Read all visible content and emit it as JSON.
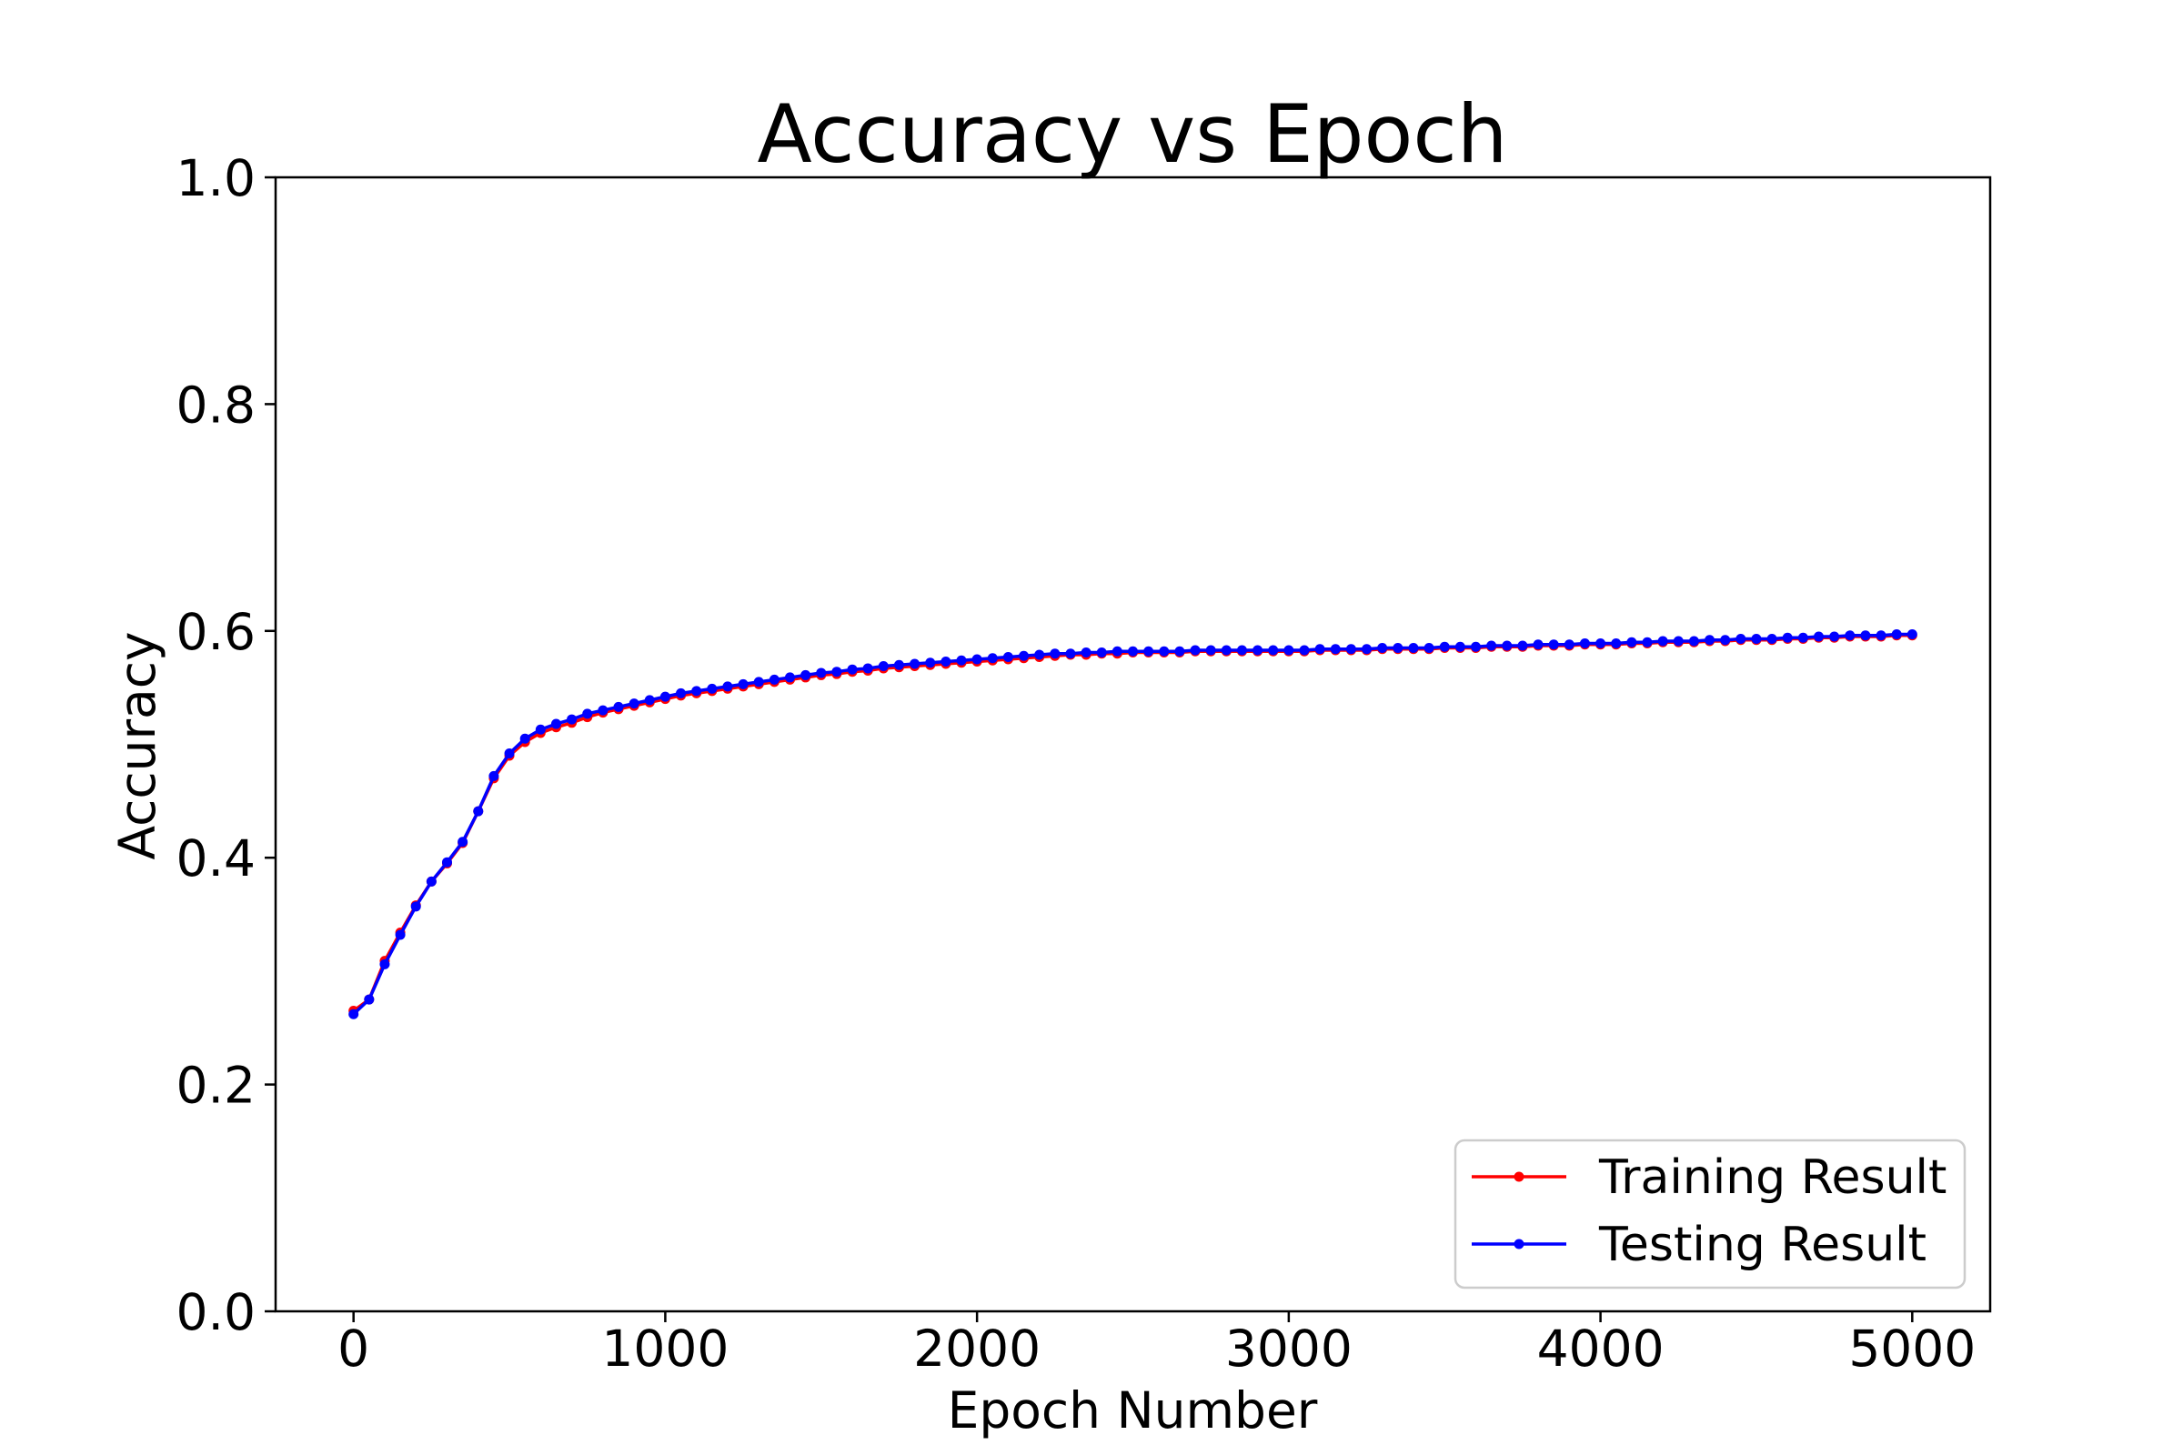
{
  "chart_data": {
    "type": "line",
    "title": "Accuracy vs Epoch",
    "xlabel": "Epoch Number",
    "ylabel": "Accuracy",
    "xlim": [
      -250,
      5250
    ],
    "ylim": [
      0.0,
      1.0
    ],
    "xticks": [
      0,
      1000,
      2000,
      3000,
      4000,
      5000
    ],
    "xtick_labels": [
      "0",
      "1000",
      "2000",
      "3000",
      "4000",
      "5000"
    ],
    "yticks": [
      0.0,
      0.2,
      0.4,
      0.6,
      0.8,
      1.0
    ],
    "ytick_labels": [
      "0.0",
      "0.2",
      "0.4",
      "0.6",
      "0.8",
      "1.0"
    ],
    "grid": false,
    "legend_position": "lower-right",
    "x": [
      0,
      50,
      100,
      150,
      200,
      250,
      300,
      350,
      400,
      450,
      500,
      550,
      600,
      650,
      700,
      750,
      800,
      850,
      900,
      950,
      1000,
      1050,
      1100,
      1150,
      1200,
      1250,
      1300,
      1350,
      1400,
      1450,
      1500,
      1550,
      1600,
      1650,
      1700,
      1750,
      1800,
      1850,
      1900,
      1950,
      2000,
      2050,
      2100,
      2150,
      2200,
      2250,
      2300,
      2350,
      2400,
      2450,
      2500,
      2550,
      2600,
      2650,
      2700,
      2750,
      2800,
      2850,
      2900,
      2950,
      3000,
      3050,
      3100,
      3150,
      3200,
      3250,
      3300,
      3350,
      3400,
      3450,
      3500,
      3550,
      3600,
      3650,
      3700,
      3750,
      3800,
      3850,
      3900,
      3950,
      4000,
      4050,
      4100,
      4150,
      4200,
      4250,
      4300,
      4350,
      4400,
      4450,
      4500,
      4550,
      4600,
      4650,
      4700,
      4750,
      4800,
      4850,
      4900,
      4950,
      5000
    ],
    "series": [
      {
        "name": "Training Result",
        "color": "#ff0000",
        "values": [
          0.265,
          0.275,
          0.309,
          0.334,
          0.358,
          0.379,
          0.395,
          0.413,
          0.441,
          0.47,
          0.49,
          0.502,
          0.51,
          0.515,
          0.519,
          0.524,
          0.528,
          0.531,
          0.534,
          0.537,
          0.54,
          0.543,
          0.545,
          0.547,
          0.549,
          0.551,
          0.553,
          0.555,
          0.557,
          0.559,
          0.561,
          0.562,
          0.564,
          0.565,
          0.567,
          0.568,
          0.569,
          0.57,
          0.571,
          0.572,
          0.573,
          0.574,
          0.575,
          0.576,
          0.577,
          0.578,
          0.579,
          0.579,
          0.58,
          0.58,
          0.581,
          0.581,
          0.581,
          0.581,
          0.582,
          0.582,
          0.582,
          0.582,
          0.582,
          0.582,
          0.582,
          0.582,
          0.583,
          0.583,
          0.583,
          0.583,
          0.584,
          0.584,
          0.584,
          0.584,
          0.585,
          0.585,
          0.585,
          0.586,
          0.586,
          0.586,
          0.587,
          0.587,
          0.587,
          0.588,
          0.588,
          0.588,
          0.589,
          0.589,
          0.59,
          0.59,
          0.59,
          0.591,
          0.591,
          0.592,
          0.592,
          0.592,
          0.593,
          0.593,
          0.594,
          0.594,
          0.595,
          0.595,
          0.595,
          0.596,
          0.596
        ]
      },
      {
        "name": "Testing Result",
        "color": "#0000ff",
        "values": [
          0.262,
          0.275,
          0.306,
          0.332,
          0.357,
          0.379,
          0.396,
          0.414,
          0.441,
          0.472,
          0.492,
          0.505,
          0.513,
          0.518,
          0.522,
          0.527,
          0.53,
          0.533,
          0.536,
          0.539,
          0.542,
          0.545,
          0.547,
          0.549,
          0.551,
          0.553,
          0.555,
          0.557,
          0.559,
          0.561,
          0.563,
          0.564,
          0.566,
          0.567,
          0.569,
          0.57,
          0.571,
          0.572,
          0.573,
          0.574,
          0.575,
          0.576,
          0.577,
          0.578,
          0.579,
          0.58,
          0.58,
          0.581,
          0.581,
          0.582,
          0.582,
          0.582,
          0.582,
          0.582,
          0.583,
          0.583,
          0.583,
          0.583,
          0.583,
          0.583,
          0.583,
          0.583,
          0.584,
          0.584,
          0.584,
          0.584,
          0.585,
          0.585,
          0.585,
          0.585,
          0.586,
          0.586,
          0.586,
          0.587,
          0.587,
          0.587,
          0.588,
          0.588,
          0.588,
          0.589,
          0.589,
          0.589,
          0.59,
          0.59,
          0.591,
          0.591,
          0.591,
          0.592,
          0.592,
          0.593,
          0.593,
          0.593,
          0.594,
          0.594,
          0.595,
          0.595,
          0.596,
          0.596,
          0.596,
          0.597,
          0.597
        ]
      }
    ]
  }
}
